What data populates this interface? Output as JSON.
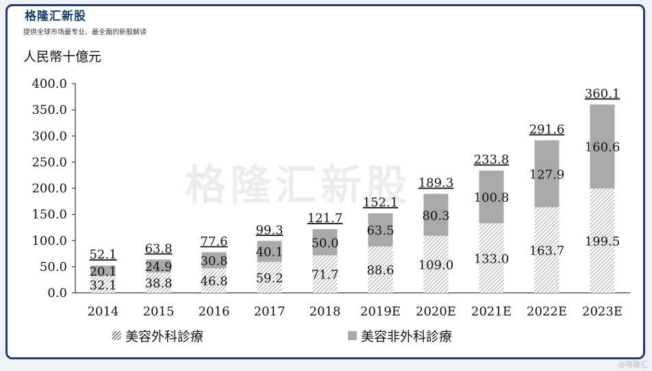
{
  "brand": "格隆汇新股",
  "subtitle": "提供全球市场最专业、最全面的新股解读",
  "watermark_text": "格隆汇新股",
  "corner_mark": "@格隆汇",
  "chart_data": {
    "type": "bar",
    "stacked": true,
    "ylabel": "人民幣十億元",
    "ylim": [
      0,
      400
    ],
    "yticks": [
      "0.0",
      "50.0",
      "100.0",
      "150.0",
      "200.0",
      "250.0",
      "300.0",
      "350.0",
      "400.0"
    ],
    "categories": [
      "2014",
      "2015",
      "2016",
      "2017",
      "2018",
      "2019E",
      "2020E",
      "2021E",
      "2022E",
      "2023E"
    ],
    "series": [
      {
        "name": "美容外科診療",
        "values": [
          32.1,
          38.8,
          46.8,
          59.2,
          71.7,
          88.6,
          109.0,
          133.0,
          163.7,
          199.5
        ],
        "labels": [
          "32.1",
          "38.8",
          "46.8",
          "59.2",
          "71.7",
          "88.6",
          "109.0",
          "133.0",
          "163.7",
          "199.5"
        ],
        "fill": "hatch"
      },
      {
        "name": "美容非外科診療",
        "values": [
          20.1,
          24.9,
          30.8,
          40.1,
          50.0,
          63.5,
          80.3,
          100.8,
          127.9,
          160.6
        ],
        "labels": [
          "20.1",
          "24.9",
          "30.8",
          "40.1",
          "50.0",
          "63.5",
          "80.3",
          "100.8",
          "127.9",
          "160.6"
        ],
        "color": "#a9a9a9"
      }
    ],
    "totals": [
      "52.1",
      "63.8",
      "77.6",
      "99.3",
      "121.7",
      "152.1",
      "189.3",
      "233.8",
      "291.6",
      "360.1"
    ],
    "grid": false,
    "legend_position": "bottom"
  }
}
